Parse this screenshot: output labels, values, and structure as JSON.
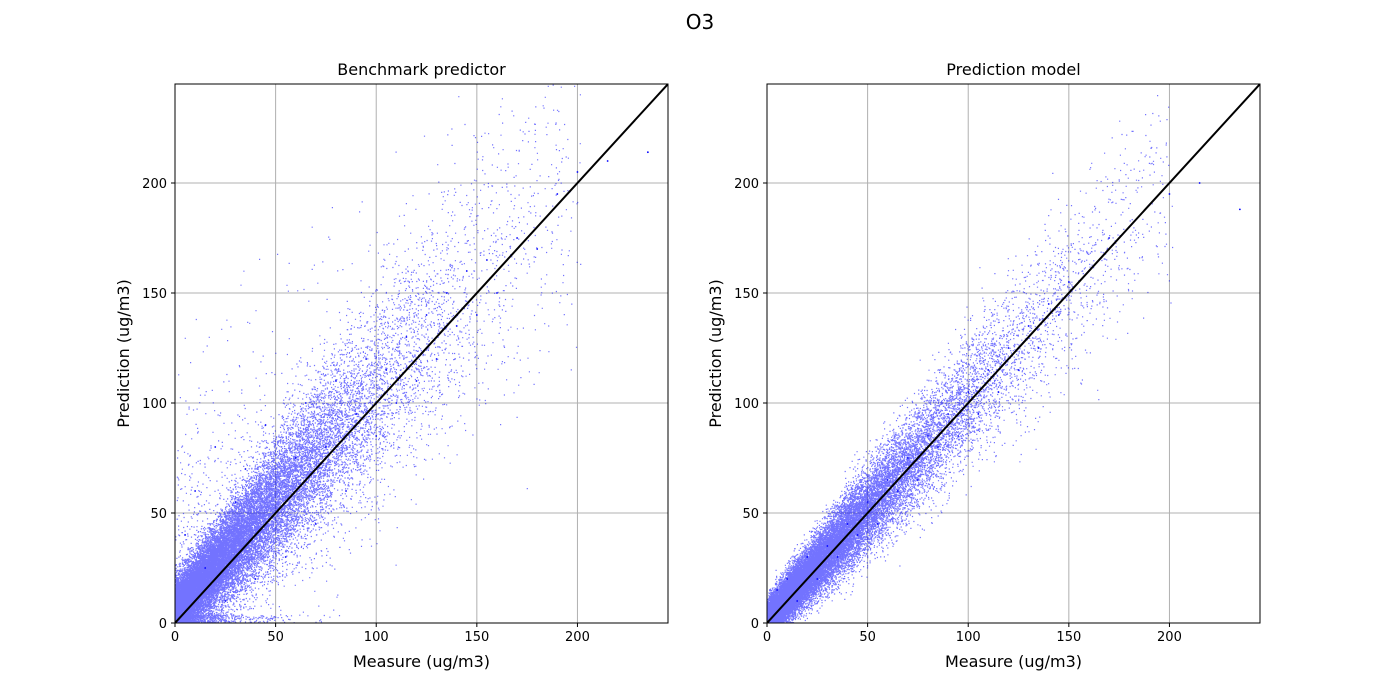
{
  "figure": {
    "title": "O3"
  },
  "chart_data": [
    {
      "type": "scatter",
      "title": "Benchmark predictor",
      "xlabel": "Measure  (ug/m3)",
      "ylabel": "Prediction  (ug/m3)",
      "xlim": [
        0,
        245
      ],
      "ylim": [
        0,
        245
      ],
      "xticks": [
        0,
        50,
        100,
        150,
        200
      ],
      "yticks": [
        0,
        50,
        100,
        150,
        200
      ],
      "grid": true,
      "point_color": "#0000ff",
      "reference_line": {
        "from": [
          0,
          0
        ],
        "to": [
          245,
          245
        ],
        "color": "#000000"
      },
      "point_cloud": {
        "description_of_spread": "wide",
        "representative_points": [
          [
            5,
            40
          ],
          [
            10,
            60
          ],
          [
            15,
            25
          ],
          [
            20,
            80
          ],
          [
            25,
            10
          ],
          [
            30,
            55
          ],
          [
            35,
            70
          ],
          [
            40,
            20
          ],
          [
            45,
            90
          ],
          [
            50,
            50
          ],
          [
            55,
            30
          ],
          [
            60,
            75
          ],
          [
            65,
            100
          ],
          [
            70,
            45
          ],
          [
            75,
            80
          ],
          [
            80,
            110
          ],
          [
            85,
            60
          ],
          [
            90,
            95
          ],
          [
            95,
            120
          ],
          [
            100,
            85
          ],
          [
            105,
            115
          ],
          [
            110,
            100
          ],
          [
            115,
            130
          ],
          [
            120,
            110
          ],
          [
            125,
            140
          ],
          [
            130,
            120
          ],
          [
            135,
            150
          ],
          [
            140,
            135
          ],
          [
            145,
            160
          ],
          [
            150,
            140
          ],
          [
            155,
            165
          ],
          [
            160,
            150
          ],
          [
            170,
            175
          ],
          [
            180,
            170
          ],
          [
            190,
            195
          ],
          [
            200,
            205
          ],
          [
            215,
            210
          ],
          [
            235,
            214
          ]
        ]
      }
    },
    {
      "type": "scatter",
      "title": "Prediction model",
      "xlabel": "Measure  (ug/m3)",
      "ylabel": "Prediction  (ug/m3)",
      "xlim": [
        0,
        245
      ],
      "ylim": [
        0,
        245
      ],
      "xticks": [
        0,
        50,
        100,
        150,
        200
      ],
      "yticks": [
        0,
        50,
        100,
        150,
        200
      ],
      "grid": true,
      "point_color": "#0000ff",
      "reference_line": {
        "from": [
          0,
          0
        ],
        "to": [
          245,
          245
        ],
        "color": "#000000"
      },
      "point_cloud": {
        "description_of_spread": "narrow",
        "representative_points": [
          [
            5,
            15
          ],
          [
            10,
            20
          ],
          [
            15,
            10
          ],
          [
            20,
            30
          ],
          [
            25,
            20
          ],
          [
            30,
            35
          ],
          [
            35,
            30
          ],
          [
            40,
            45
          ],
          [
            45,
            40
          ],
          [
            50,
            55
          ],
          [
            55,
            45
          ],
          [
            60,
            65
          ],
          [
            65,
            60
          ],
          [
            70,
            75
          ],
          [
            75,
            65
          ],
          [
            80,
            85
          ],
          [
            85,
            80
          ],
          [
            90,
            95
          ],
          [
            95,
            85
          ],
          [
            100,
            105
          ],
          [
            105,
            95
          ],
          [
            110,
            115
          ],
          [
            115,
            105
          ],
          [
            120,
            125
          ],
          [
            125,
            115
          ],
          [
            130,
            135
          ],
          [
            135,
            125
          ],
          [
            140,
            145
          ],
          [
            145,
            140
          ],
          [
            150,
            155
          ],
          [
            160,
            160
          ],
          [
            170,
            175
          ],
          [
            180,
            180
          ],
          [
            190,
            190
          ],
          [
            200,
            195
          ],
          [
            215,
            200
          ],
          [
            235,
            188
          ]
        ]
      }
    }
  ]
}
